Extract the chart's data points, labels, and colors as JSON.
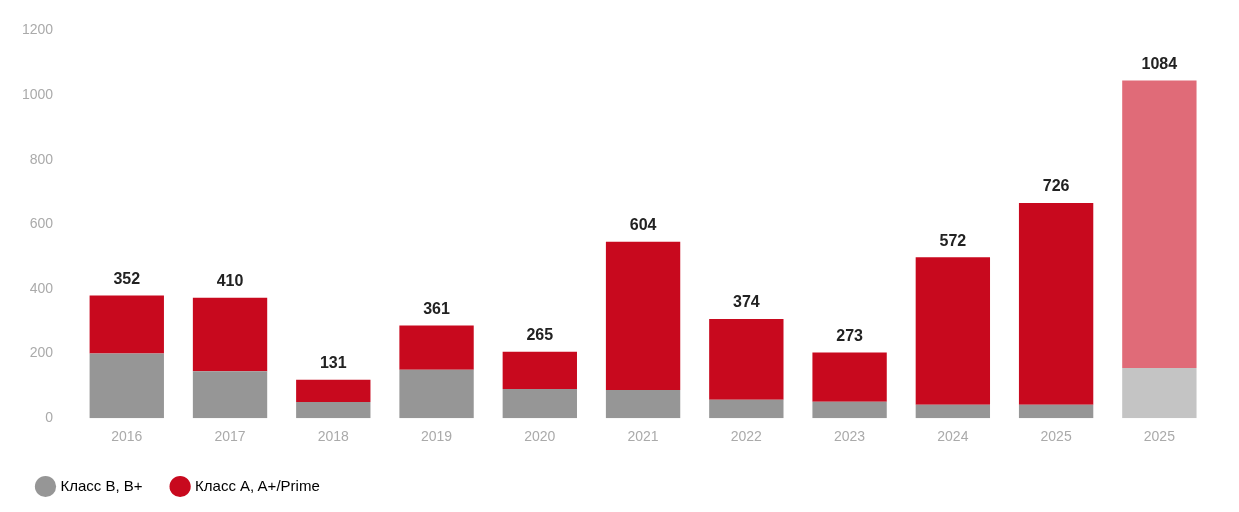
{
  "chart_data": {
    "type": "bar",
    "stacked": true,
    "categories": [
      "2016",
      "2017",
      "2018",
      "2019",
      "2020",
      "2021",
      "2022",
      "2023",
      "2024",
      "2025",
      "2025"
    ],
    "series": [
      {
        "name": "Класс B, B+",
        "color": "#969696",
        "colors": [
          "#969696",
          "#969696",
          "#969696",
          "#969696",
          "#969696",
          "#969696",
          "#969696",
          "#969696",
          "#969696",
          "#969696",
          "#c4c4c4"
        ],
        "values": [
          200,
          145,
          50,
          150,
          90,
          87,
          57,
          51,
          42,
          42,
          155
        ]
      },
      {
        "name": "Класс A, A+/Prime",
        "color": "#c8091e",
        "colors": [
          "#c8091e",
          "#c8091e",
          "#c8091e",
          "#c8091e",
          "#c8091e",
          "#c8091e",
          "#c8091e",
          "#c8091e",
          "#c8091e",
          "#c8091e",
          "#e06b78"
        ],
        "values": [
          180,
          228,
          69,
          137,
          116,
          459,
          250,
          152,
          456,
          624,
          890
        ]
      }
    ],
    "annotations": [
      "352",
      "410",
      "131",
      "361",
      "265",
      "604",
      "374",
      "273",
      "572",
      "726",
      "1084"
    ],
    "ylim": [
      0,
      1200
    ],
    "yticks": [
      0,
      200,
      400,
      600,
      800,
      {
        "value": 1000,
        "label": "1000"
      },
      {
        "value": 1200,
        "label": "1200"
      }
    ],
    "grid": false,
    "legend": "bottom left"
  }
}
